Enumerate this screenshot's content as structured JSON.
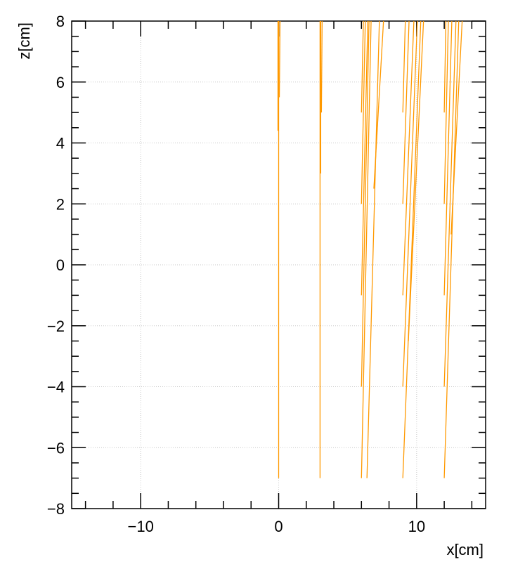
{
  "chart_data": {
    "type": "line",
    "title": "",
    "xlabel": "x[cm]",
    "ylabel": "z[cm]",
    "xlim": [
      -15,
      15
    ],
    "ylim": [
      -8,
      8
    ],
    "x_ticks": [
      -10,
      0,
      10
    ],
    "y_ticks": [
      -8,
      -6,
      -4,
      -2,
      0,
      2,
      4,
      6,
      8
    ],
    "x_tick_labels": [
      "−10",
      "0",
      "10"
    ],
    "y_tick_labels": [
      "−8",
      "−6",
      "−4",
      "−2",
      "0",
      "2",
      "4",
      "6",
      "8"
    ],
    "grid": true,
    "legend": "none",
    "line_color": "#ff9900",
    "series": [
      {
        "x": [
          0.0,
          0.0
        ],
        "y": [
          -7.0,
          8.0
        ]
      },
      {
        "x": [
          -0.05,
          -0.05
        ],
        "y": [
          4.4,
          8.0
        ]
      },
      {
        "x": [
          0.05,
          0.1
        ],
        "y": [
          5.5,
          8.0
        ]
      },
      {
        "x": [
          3.0,
          3.0
        ],
        "y": [
          -7.0,
          8.0
        ]
      },
      {
        "x": [
          3.05,
          3.05
        ],
        "y": [
          3.0,
          8.0
        ]
      },
      {
        "x": [
          3.1,
          3.15
        ],
        "y": [
          5.0,
          8.0
        ]
      },
      {
        "x": [
          6.0,
          6.7
        ],
        "y": [
          -7.0,
          8.0
        ]
      },
      {
        "x": [
          6.0,
          6.55
        ],
        "y": [
          -4.0,
          8.0
        ]
      },
      {
        "x": [
          6.0,
          6.46
        ],
        "y": [
          -1.0,
          8.0
        ]
      },
      {
        "x": [
          6.0,
          6.28
        ],
        "y": [
          2.0,
          8.0
        ]
      },
      {
        "x": [
          6.0,
          6.14
        ],
        "y": [
          5.0,
          8.0
        ]
      },
      {
        "x": [
          6.4,
          7.3
        ],
        "y": [
          -7.0,
          8.0
        ]
      },
      {
        "x": [
          6.9,
          7.6
        ],
        "y": [
          2.5,
          8.0
        ]
      },
      {
        "x": [
          9.0,
          10.3
        ],
        "y": [
          -7.0,
          8.0
        ]
      },
      {
        "x": [
          9.0,
          10.05
        ],
        "y": [
          -4.0,
          8.0
        ]
      },
      {
        "x": [
          9.0,
          9.8
        ],
        "y": [
          -1.0,
          8.0
        ]
      },
      {
        "x": [
          9.0,
          9.45
        ],
        "y": [
          2.0,
          8.0
        ]
      },
      {
        "x": [
          9.0,
          9.18
        ],
        "y": [
          5.0,
          8.0
        ]
      },
      {
        "x": [
          9.4,
          10.5
        ],
        "y": [
          -2.5,
          8.0
        ]
      },
      {
        "x": [
          12.0,
          13.05
        ],
        "y": [
          -7.0,
          8.0
        ]
      },
      {
        "x": [
          12.0,
          12.85
        ],
        "y": [
          -4.0,
          8.0
        ]
      },
      {
        "x": [
          12.0,
          12.55
        ],
        "y": [
          -1.0,
          8.0
        ]
      },
      {
        "x": [
          12.0,
          12.3
        ],
        "y": [
          2.0,
          8.0
        ]
      },
      {
        "x": [
          12.0,
          12.12
        ],
        "y": [
          5.0,
          8.0
        ]
      },
      {
        "x": [
          12.5,
          13.3
        ],
        "y": [
          1.0,
          8.0
        ]
      }
    ]
  }
}
